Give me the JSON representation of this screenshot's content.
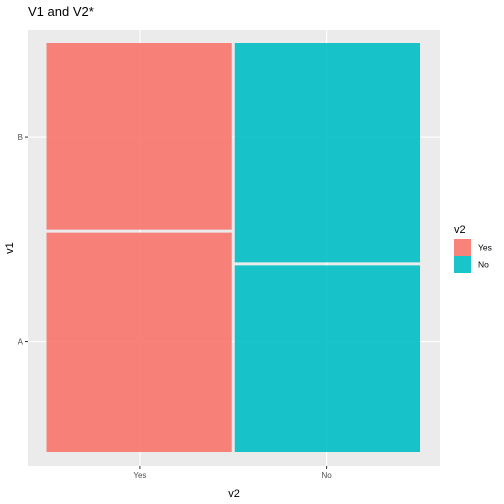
{
  "chart_data": {
    "type": "mosaic",
    "title": "V1 and V2*",
    "xlabel": "v2",
    "ylabel": "v1",
    "x_categories": [
      "Yes",
      "No"
    ],
    "y_categories": [
      "A",
      "B"
    ],
    "x_widths": [
      0.5,
      0.5
    ],
    "cells": [
      {
        "x": "Yes",
        "y": "A",
        "proportion": 0.54
      },
      {
        "x": "Yes",
        "y": "B",
        "proportion": 0.46
      },
      {
        "x": "No",
        "y": "A",
        "proportion": 0.46
      },
      {
        "x": "No",
        "y": "B",
        "proportion": 0.54
      }
    ],
    "legend": {
      "title": "v2",
      "placement": "right",
      "entries": [
        {
          "label": "Yes",
          "color": "#F8766D"
        },
        {
          "label": "No",
          "color": "#00BFC4"
        }
      ]
    },
    "panel_background": "#EBEBEB",
    "grid": true
  }
}
